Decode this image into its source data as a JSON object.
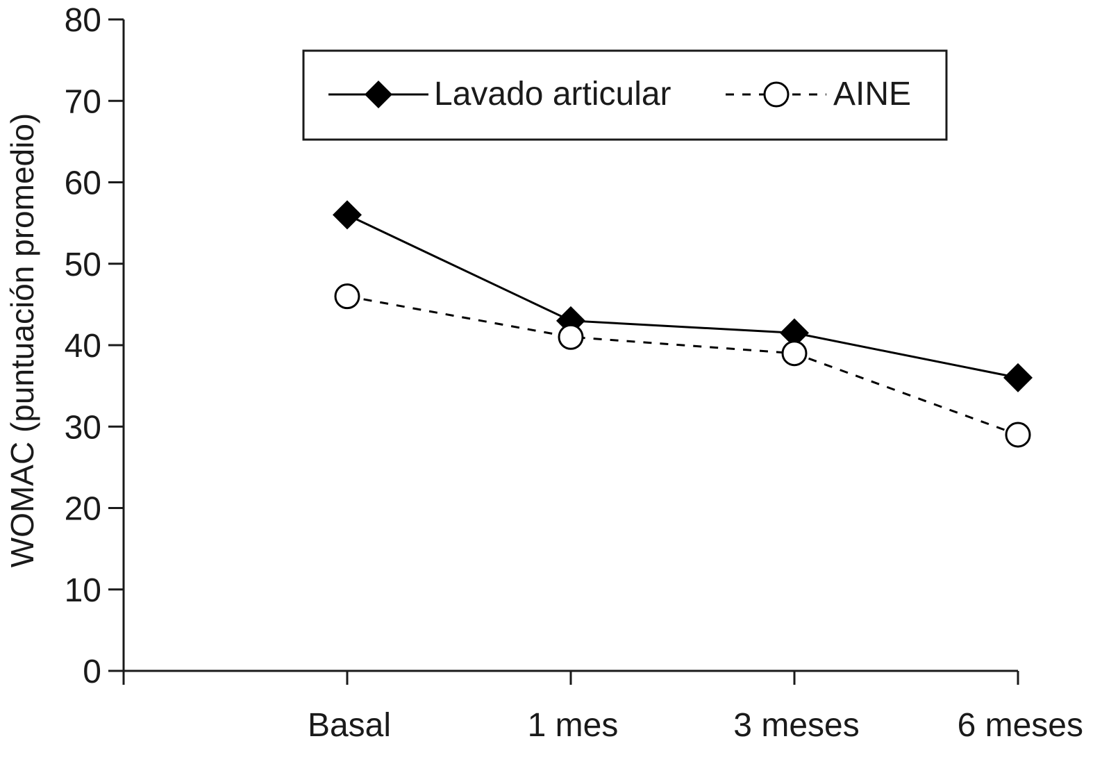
{
  "chart_data": {
    "type": "line",
    "title": "",
    "xlabel": "",
    "ylabel": "WOMAC (puntuación promedio)",
    "categories": [
      "Basal",
      "1 mes",
      "3 meses",
      "6 meses"
    ],
    "yticks": [
      "0",
      "10",
      "20",
      "30",
      "40",
      "50",
      "60",
      "70",
      "80"
    ],
    "ylim": [
      0,
      80
    ],
    "grid": false,
    "legend_position": "top-center",
    "series": [
      {
        "name": "Lavado articular",
        "values": [
          56,
          43,
          41.5,
          36
        ],
        "line": "solid",
        "marker": "filled-diamond",
        "color": "#000000"
      },
      {
        "name": "AINE",
        "values": [
          46,
          41,
          39,
          29
        ],
        "line": "dashed",
        "marker": "open-circle",
        "color": "#000000"
      }
    ]
  }
}
